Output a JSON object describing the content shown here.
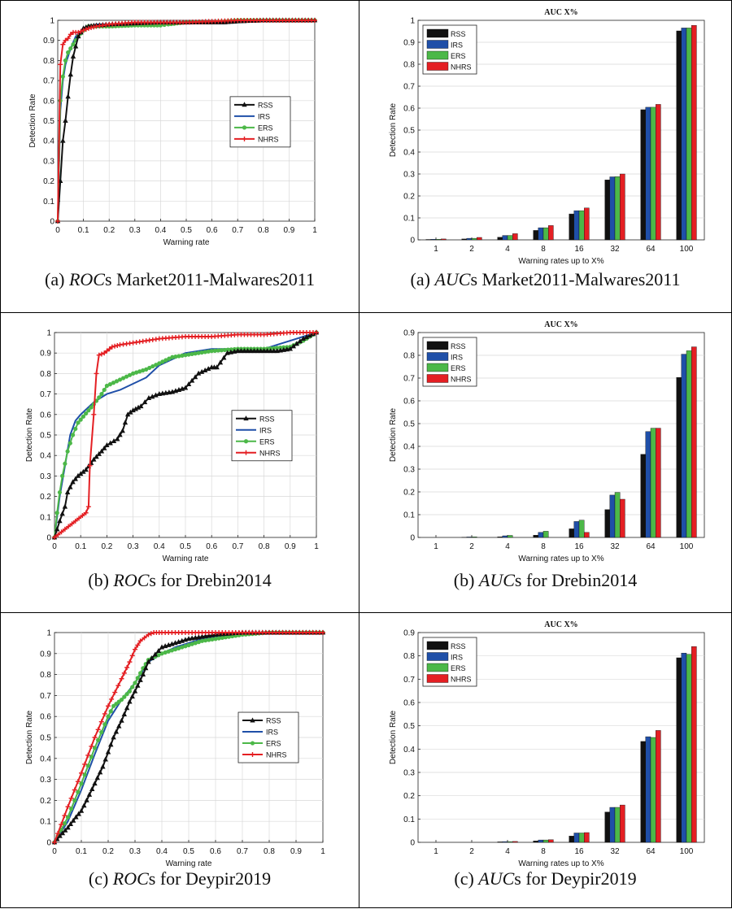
{
  "captions": [
    {
      "prefix": "(a) ",
      "italic": "ROC",
      "rest": "s Market2011-Malwares2011"
    },
    {
      "prefix": "(a) ",
      "italic": "AUC",
      "rest": "s Market2011-Malwares2011"
    },
    {
      "prefix": "(b) ",
      "italic": "ROC",
      "rest": "s for Drebin2014"
    },
    {
      "prefix": "(b) ",
      "italic": "AUC",
      "rest": "s for Drebin2014"
    },
    {
      "prefix": "(c) ",
      "italic": "ROC",
      "rest": "s for Deypir2019"
    },
    {
      "prefix": "(c) ",
      "italic": "AUC",
      "rest": "s for Deypir2019"
    }
  ],
  "colors": {
    "RSS": "#111111",
    "IRS": "#1f4fa8",
    "ERS": "#4cb848",
    "NHRS": "#e41f23"
  },
  "chart_data": [
    {
      "id": "roc-a",
      "type": "line",
      "title": "",
      "xlabel": "Warning rate",
      "ylabel": "Detection Rate",
      "xlim": [
        0,
        1
      ],
      "ylim": [
        0,
        1
      ],
      "xticks": [
        "0",
        "0.1",
        "0.2",
        "0.3",
        "0.4",
        "0.5",
        "0.6",
        "0.7",
        "0.8",
        "0.9",
        "1"
      ],
      "yticks": [
        "0",
        "0.1",
        "0.2",
        "0.3",
        "0.4",
        "0.5",
        "0.6",
        "0.7",
        "0.8",
        "0.9",
        "1"
      ],
      "legend": "middle-right",
      "series": [
        {
          "name": "RSS",
          "marker": "triangle",
          "x": [
            0,
            0.01,
            0.02,
            0.03,
            0.04,
            0.05,
            0.06,
            0.07,
            0.08,
            0.09,
            0.1,
            0.12,
            0.15,
            0.2,
            0.3,
            0.4,
            0.5,
            0.6,
            0.65,
            0.7,
            0.8,
            0.9,
            1
          ],
          "y": [
            0,
            0.2,
            0.4,
            0.5,
            0.62,
            0.73,
            0.82,
            0.87,
            0.92,
            0.94,
            0.96,
            0.97,
            0.975,
            0.98,
            0.985,
            0.99,
            0.99,
            0.99,
            0.99,
            0.995,
            1,
            1,
            1
          ]
        },
        {
          "name": "IRS",
          "marker": "none",
          "x": [
            0,
            0.01,
            0.02,
            0.03,
            0.05,
            0.07,
            0.1,
            0.15,
            0.2,
            0.3,
            0.5,
            0.7,
            1
          ],
          "y": [
            0,
            0.55,
            0.7,
            0.78,
            0.86,
            0.92,
            0.96,
            0.98,
            0.98,
            0.985,
            0.99,
            1,
            1
          ]
        },
        {
          "name": "ERS",
          "marker": "circle",
          "x": [
            0,
            0.01,
            0.02,
            0.03,
            0.04,
            0.05,
            0.06,
            0.08,
            0.1,
            0.12,
            0.15,
            0.2,
            0.3,
            0.4,
            0.43,
            0.5,
            0.6,
            0.7,
            0.8,
            0.9,
            1
          ],
          "y": [
            0,
            0.6,
            0.72,
            0.8,
            0.84,
            0.86,
            0.88,
            0.92,
            0.95,
            0.97,
            0.97,
            0.97,
            0.975,
            0.975,
            0.98,
            0.99,
            0.99,
            1,
            1,
            1,
            1
          ]
        },
        {
          "name": "NHRS",
          "marker": "plus",
          "x": [
            0,
            0.01,
            0.02,
            0.03,
            0.04,
            0.05,
            0.06,
            0.07,
            0.08,
            0.1,
            0.12,
            0.15,
            0.2,
            0.3,
            0.4,
            0.5,
            0.6,
            0.7,
            0.8,
            0.9,
            1
          ],
          "y": [
            0,
            0.78,
            0.88,
            0.9,
            0.91,
            0.93,
            0.94,
            0.94,
            0.94,
            0.95,
            0.96,
            0.97,
            0.98,
            0.99,
            0.99,
            0.99,
            0.995,
            1,
            1,
            1,
            1
          ]
        }
      ]
    },
    {
      "id": "auc-a",
      "type": "bar",
      "title": "AUC X%",
      "xlabel": "Warning rates up to X%",
      "ylabel": "Detection Rate",
      "ylim": [
        0,
        1
      ],
      "yticks": [
        "0",
        "0.1",
        "0.2",
        "0.3",
        "0.4",
        "0.5",
        "0.6",
        "0.7",
        "0.8",
        "0.9",
        "1"
      ],
      "categories": [
        "1",
        "2",
        "4",
        "8",
        "16",
        "32",
        "64",
        "100"
      ],
      "legend": "top-left",
      "series": [
        {
          "name": "RSS",
          "values": [
            0.002,
            0.004,
            0.012,
            0.043,
            0.118,
            0.273,
            0.593,
            0.952
          ]
        },
        {
          "name": "IRS",
          "values": [
            0.003,
            0.007,
            0.02,
            0.055,
            0.133,
            0.287,
            0.604,
            0.965
          ]
        },
        {
          "name": "ERS",
          "values": [
            0.003,
            0.007,
            0.02,
            0.055,
            0.133,
            0.288,
            0.604,
            0.965
          ]
        },
        {
          "name": "NHRS",
          "values": [
            0.004,
            0.011,
            0.028,
            0.065,
            0.145,
            0.3,
            0.617,
            0.977
          ]
        }
      ]
    },
    {
      "id": "roc-b",
      "type": "line",
      "title": "",
      "xlabel": "Warning rate",
      "ylabel": "Detection Rate",
      "xlim": [
        0,
        1
      ],
      "ylim": [
        0,
        1
      ],
      "xticks": [
        "0",
        "0.1",
        "0.2",
        "0.3",
        "0.4",
        "0.5",
        "0.6",
        "0.7",
        "0.8",
        "0.9",
        "1"
      ],
      "yticks": [
        "0",
        "0.1",
        "0.2",
        "0.3",
        "0.4",
        "0.5",
        "0.6",
        "0.7",
        "0.8",
        "0.9",
        "1"
      ],
      "legend": "middle-right",
      "series": [
        {
          "name": "RSS",
          "marker": "triangle",
          "x": [
            0,
            0.02,
            0.04,
            0.05,
            0.07,
            0.09,
            0.12,
            0.15,
            0.18,
            0.2,
            0.24,
            0.26,
            0.28,
            0.3,
            0.33,
            0.36,
            0.4,
            0.45,
            0.5,
            0.55,
            0.6,
            0.62,
            0.66,
            0.7,
            0.75,
            0.8,
            0.85,
            0.9,
            0.95,
            1
          ],
          "y": [
            0,
            0.08,
            0.15,
            0.22,
            0.27,
            0.3,
            0.33,
            0.38,
            0.42,
            0.45,
            0.48,
            0.52,
            0.6,
            0.62,
            0.64,
            0.68,
            0.7,
            0.71,
            0.73,
            0.8,
            0.83,
            0.83,
            0.9,
            0.91,
            0.91,
            0.91,
            0.91,
            0.92,
            0.97,
            1
          ]
        },
        {
          "name": "IRS",
          "marker": "none",
          "x": [
            0,
            0.02,
            0.04,
            0.06,
            0.08,
            0.1,
            0.15,
            0.2,
            0.25,
            0.3,
            0.35,
            0.4,
            0.45,
            0.5,
            0.55,
            0.6,
            0.7,
            0.8,
            0.85,
            0.9,
            0.95,
            1
          ],
          "y": [
            0,
            0.2,
            0.35,
            0.5,
            0.57,
            0.6,
            0.66,
            0.7,
            0.72,
            0.75,
            0.78,
            0.84,
            0.87,
            0.9,
            0.91,
            0.92,
            0.92,
            0.92,
            0.94,
            0.96,
            0.98,
            1
          ]
        },
        {
          "name": "ERS",
          "marker": "circle",
          "x": [
            0,
            0.01,
            0.02,
            0.03,
            0.05,
            0.07,
            0.09,
            0.11,
            0.13,
            0.15,
            0.18,
            0.2,
            0.25,
            0.3,
            0.35,
            0.4,
            0.45,
            0.5,
            0.55,
            0.6,
            0.7,
            0.8,
            0.9,
            0.95,
            1
          ],
          "y": [
            0,
            0.12,
            0.22,
            0.3,
            0.42,
            0.5,
            0.56,
            0.59,
            0.62,
            0.65,
            0.7,
            0.74,
            0.77,
            0.8,
            0.82,
            0.85,
            0.88,
            0.89,
            0.9,
            0.91,
            0.92,
            0.92,
            0.93,
            0.96,
            1
          ]
        },
        {
          "name": "NHRS",
          "marker": "plus",
          "x": [
            0,
            0.04,
            0.08,
            0.12,
            0.13,
            0.135,
            0.15,
            0.16,
            0.17,
            0.19,
            0.22,
            0.25,
            0.3,
            0.35,
            0.4,
            0.5,
            0.6,
            0.7,
            0.8,
            0.9,
            1
          ],
          "y": [
            0,
            0.04,
            0.08,
            0.12,
            0.15,
            0.35,
            0.6,
            0.8,
            0.89,
            0.9,
            0.93,
            0.94,
            0.95,
            0.96,
            0.97,
            0.98,
            0.98,
            0.99,
            0.99,
            1,
            1
          ]
        }
      ]
    },
    {
      "id": "auc-b",
      "type": "bar",
      "title": "AUC X%",
      "xlabel": "Warning rates up to X%",
      "ylabel": "Detection Rate",
      "ylim": [
        0,
        0.9
      ],
      "yticks": [
        "0",
        "0.1",
        "0.2",
        "0.3",
        "0.4",
        "0.5",
        "0.6",
        "0.7",
        "0.8",
        "0.9"
      ],
      "categories": [
        "1",
        "2",
        "4",
        "8",
        "16",
        "32",
        "64",
        "100"
      ],
      "legend": "top-left",
      "series": [
        {
          "name": "RSS",
          "values": [
            0,
            0.001,
            0.003,
            0.01,
            0.038,
            0.122,
            0.365,
            0.703
          ]
        },
        {
          "name": "IRS",
          "values": [
            0,
            0.002,
            0.007,
            0.022,
            0.07,
            0.186,
            0.465,
            0.805
          ]
        },
        {
          "name": "ERS",
          "values": [
            0,
            0.003,
            0.009,
            0.027,
            0.076,
            0.198,
            0.48,
            0.82
          ]
        },
        {
          "name": "NHRS",
          "values": [
            0,
            0,
            0,
            0,
            0.022,
            0.168,
            0.48,
            0.837
          ]
        }
      ]
    },
    {
      "id": "roc-c",
      "type": "line",
      "title": "",
      "xlabel": "Warning rate",
      "ylabel": "Detection Rate",
      "xlim": [
        0,
        1
      ],
      "ylim": [
        0,
        1
      ],
      "xticks": [
        "0",
        "0.1",
        "0.2",
        "0.3",
        "0.4",
        "0.5",
        "0.6",
        "0.7",
        "0.8",
        "0.9",
        "1"
      ],
      "yticks": [
        "0",
        "0.1",
        "0.2",
        "0.3",
        "0.4",
        "0.5",
        "0.6",
        "0.7",
        "0.8",
        "0.9",
        "1"
      ],
      "legend": "middle-right",
      "series": [
        {
          "name": "RSS",
          "marker": "triangle",
          "x": [
            0,
            0.02,
            0.05,
            0.08,
            0.1,
            0.12,
            0.15,
            0.18,
            0.2,
            0.22,
            0.25,
            0.28,
            0.3,
            0.33,
            0.35,
            0.4,
            0.45,
            0.5,
            0.55,
            0.6,
            0.7,
            0.8,
            0.9,
            1
          ],
          "y": [
            0,
            0.03,
            0.07,
            0.12,
            0.15,
            0.2,
            0.28,
            0.36,
            0.43,
            0.5,
            0.58,
            0.67,
            0.72,
            0.8,
            0.86,
            0.93,
            0.95,
            0.97,
            0.98,
            0.99,
            1,
            1,
            1,
            1
          ]
        },
        {
          "name": "IRS",
          "marker": "none",
          "x": [
            0,
            0.05,
            0.1,
            0.15,
            0.2,
            0.25,
            0.3,
            0.35,
            0.4,
            0.45,
            0.5,
            0.55,
            0.6,
            0.7,
            0.8,
            1
          ],
          "y": [
            0,
            0.1,
            0.25,
            0.42,
            0.58,
            0.68,
            0.76,
            0.86,
            0.9,
            0.93,
            0.95,
            0.97,
            0.98,
            0.99,
            1,
            1
          ]
        },
        {
          "name": "ERS",
          "marker": "circle",
          "x": [
            0,
            0.05,
            0.1,
            0.15,
            0.2,
            0.22,
            0.25,
            0.28,
            0.3,
            0.33,
            0.35,
            0.4,
            0.45,
            0.5,
            0.55,
            0.6,
            0.65,
            0.7,
            0.8,
            0.9,
            1
          ],
          "y": [
            0,
            0.12,
            0.28,
            0.45,
            0.6,
            0.65,
            0.68,
            0.72,
            0.76,
            0.83,
            0.87,
            0.9,
            0.92,
            0.94,
            0.96,
            0.97,
            0.98,
            0.99,
            1,
            1,
            1
          ]
        },
        {
          "name": "NHRS",
          "marker": "plus",
          "x": [
            0,
            0.05,
            0.1,
            0.15,
            0.2,
            0.25,
            0.28,
            0.3,
            0.32,
            0.35,
            0.37,
            0.4,
            0.5,
            0.6,
            0.7,
            0.8,
            0.9,
            1
          ],
          "y": [
            0,
            0.17,
            0.33,
            0.5,
            0.65,
            0.78,
            0.86,
            0.92,
            0.96,
            0.99,
            1,
            1,
            1,
            1,
            1,
            1,
            1,
            1
          ]
        }
      ]
    },
    {
      "id": "auc-c",
      "type": "bar",
      "title": "AUC X%",
      "xlabel": "Warning rates up to X%",
      "ylabel": "Detection Rate",
      "ylim": [
        0,
        0.9
      ],
      "yticks": [
        "0",
        "0.1",
        "0.2",
        "0.3",
        "0.4",
        "0.5",
        "0.6",
        "0.7",
        "0.8",
        "0.9"
      ],
      "categories": [
        "1",
        "2",
        "4",
        "8",
        "16",
        "32",
        "64",
        "100"
      ],
      "legend": "top-left",
      "series": [
        {
          "name": "RSS",
          "values": [
            0,
            0,
            0.002,
            0.006,
            0.027,
            0.13,
            0.433,
            0.792
          ]
        },
        {
          "name": "IRS",
          "values": [
            0,
            0,
            0.003,
            0.01,
            0.04,
            0.15,
            0.453,
            0.812
          ]
        },
        {
          "name": "ERS",
          "values": [
            0,
            0,
            0.003,
            0.01,
            0.04,
            0.15,
            0.45,
            0.807
          ]
        },
        {
          "name": "NHRS",
          "values": [
            0,
            0,
            0.004,
            0.011,
            0.042,
            0.16,
            0.48,
            0.84
          ]
        }
      ]
    }
  ]
}
